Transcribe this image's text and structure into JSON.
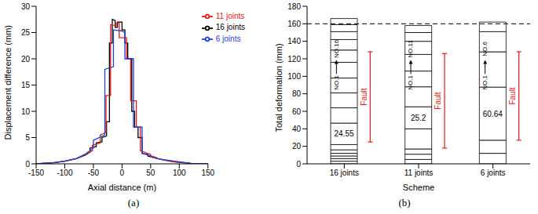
{
  "chart_data": [
    {
      "type": "line",
      "panel_label": "(a)",
      "x_label": "Axial distance (m)",
      "y_label": "Displacement difference (mm)",
      "xlim": [
        -150,
        150
      ],
      "xticks": [
        -150,
        -100,
        -50,
        0,
        50,
        100,
        150
      ],
      "ylim": [
        0,
        30
      ],
      "yticks": [
        0,
        5,
        10,
        15,
        20,
        25,
        30
      ],
      "legend": "upper right",
      "series": [
        {
          "name": "16 joints",
          "color": "#000000",
          "x": [
            -150,
            -120,
            -100,
            -80,
            -65,
            -56,
            -56,
            -45,
            -45,
            -35,
            -35,
            -27,
            -27,
            -22,
            -22,
            -17,
            -17,
            -12,
            -12,
            -8,
            -8,
            0,
            0,
            5,
            5,
            10,
            10,
            17,
            17,
            22,
            22,
            28,
            28,
            35,
            35,
            45,
            45,
            55,
            70,
            90,
            120,
            150
          ],
          "values": [
            0,
            0.2,
            0.5,
            1,
            1.6,
            2.2,
            3,
            3.3,
            4,
            4.2,
            5,
            5.3,
            8,
            8,
            23,
            23,
            27.5,
            27.3,
            26,
            26,
            27,
            27,
            25.5,
            25.5,
            23,
            23,
            20,
            20,
            10,
            10,
            7,
            7,
            5,
            5,
            2,
            1.8,
            1.5,
            1.2,
            0.8,
            0.4,
            0.1,
            0
          ]
        },
        {
          "name": "11 joints",
          "color": "#e41a1c",
          "x": [
            -150,
            -120,
            -100,
            -80,
            -65,
            -52,
            -52,
            -38,
            -38,
            -28,
            -28,
            -20,
            -20,
            -10,
            -10,
            -5,
            -5,
            8,
            8,
            15,
            15,
            25,
            25,
            32,
            32,
            50,
            50,
            70,
            90,
            120,
            150
          ],
          "values": [
            0,
            0.2,
            0.5,
            1,
            1.7,
            2.5,
            3.5,
            4,
            5.5,
            6,
            13,
            13,
            26.5,
            26.3,
            26.8,
            26.8,
            24,
            24,
            20,
            20,
            12,
            12,
            7,
            7,
            2.5,
            1.8,
            1.3,
            0.8,
            0.4,
            0.1,
            0
          ]
        },
        {
          "name": "6 joints",
          "color": "#1f3fd6",
          "x": [
            -150,
            -120,
            -100,
            -80,
            -65,
            -50,
            -50,
            -30,
            -30,
            -15,
            -15,
            0,
            5,
            5,
            20,
            20,
            35,
            35,
            60,
            60,
            80,
            100,
            120,
            150
          ],
          "values": [
            0,
            0.2,
            0.5,
            1,
            1.8,
            3,
            4.5,
            5.5,
            18,
            18.5,
            25.5,
            25.3,
            25,
            20,
            20,
            7,
            7,
            2,
            1.2,
            1,
            0.7,
            0.4,
            0.1,
            0
          ]
        }
      ]
    },
    {
      "type": "bar",
      "stacked": true,
      "panel_label": "(b)",
      "x_label": "Scheme",
      "y_label": "Total deformation (mm)",
      "categories": [
        "16 joints",
        "11 joints",
        "6 joints"
      ],
      "ylim": [
        0,
        180
      ],
      "yticks": [
        0,
        20,
        40,
        60,
        80,
        100,
        120,
        140,
        160,
        180
      ],
      "color": "#ffffff",
      "data_labels": true,
      "values": [
        [
          3,
          3,
          3,
          3,
          4,
          6,
          24.55,
          17.45,
          17,
          17,
          18,
          14,
          12,
          9,
          8,
          7
        ],
        [
          5,
          6,
          6,
          23,
          25.2,
          22.8,
          18,
          19,
          15,
          10,
          8
        ],
        [
          12,
          15,
          60.64,
          40.36,
          23,
          11
        ]
      ],
      "value_labels": [
        [
          null,
          null,
          null,
          null,
          null,
          null,
          "24.55",
          null,
          null,
          null,
          null,
          null,
          null,
          null,
          null,
          null
        ],
        [
          null,
          null,
          null,
          null,
          "25.2",
          null,
          null,
          null,
          null,
          null,
          null
        ],
        [
          null,
          null,
          "60.64",
          null,
          null,
          null
        ]
      ],
      "reference_lines": [
        {
          "y": 160,
          "line_style": "dashed"
        }
      ],
      "annotations": [
        {
          "category": "16 joints",
          "from": "NO.1",
          "to": "NO.16",
          "text": "Fault",
          "range": [
            25,
            128
          ],
          "color": "#e41a1c"
        },
        {
          "category": "11 joints",
          "from": "NO.1",
          "to": "NO.11",
          "text": "Fault",
          "range": [
            18,
            126
          ],
          "color": "#e41a1c"
        },
        {
          "category": "6 joints",
          "from": "NO.1",
          "to": "NO.6",
          "text": "Fault",
          "range": [
            27,
            128
          ],
          "color": "#e41a1c"
        }
      ]
    }
  ]
}
